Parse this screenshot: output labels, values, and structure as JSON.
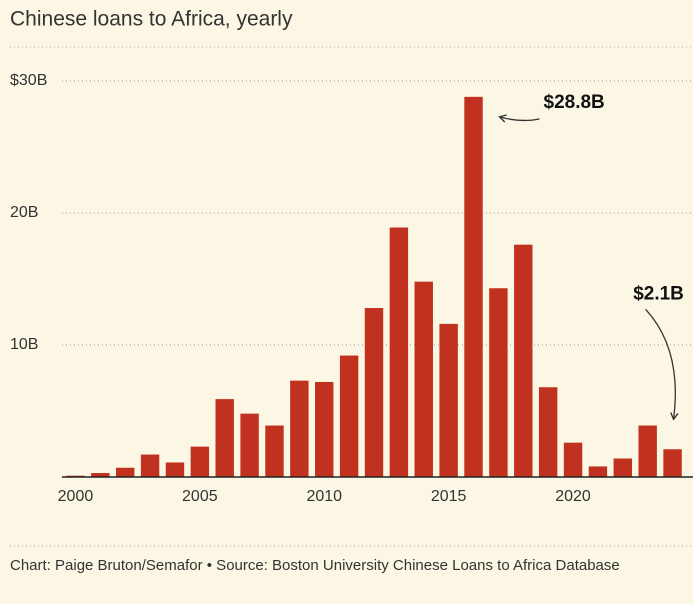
{
  "chart_data": {
    "type": "bar",
    "title": "Chinese loans to Africa, yearly",
    "source": "Chart: Paige Bruton/Semafor • Source: Boston University Chinese Loans to Africa Database",
    "x": [
      2000,
      2001,
      2002,
      2003,
      2004,
      2005,
      2006,
      2007,
      2008,
      2009,
      2010,
      2011,
      2012,
      2013,
      2014,
      2015,
      2016,
      2017,
      2018,
      2019,
      2020,
      2021,
      2022,
      2023,
      2024
    ],
    "values": [
      0.1,
      0.3,
      0.7,
      1.7,
      1.1,
      2.3,
      5.9,
      4.8,
      3.9,
      7.3,
      7.2,
      9.2,
      12.8,
      18.9,
      14.8,
      11.6,
      28.8,
      14.3,
      17.6,
      6.8,
      2.6,
      0.8,
      1.4,
      3.9,
      2.1
    ],
    "color": "#c0321f",
    "xlim": [
      1999.5,
      2024.5
    ],
    "xticks": [
      2000,
      2005,
      2010,
      2015,
      2020
    ],
    "ylim": [
      0,
      30
    ],
    "yticks": [
      {
        "value": 10,
        "label": "10B"
      },
      {
        "value": 20,
        "label": "20B"
      },
      {
        "value": 30,
        "label": "$30B"
      }
    ],
    "grid": true,
    "annotations": [
      {
        "text": "$28.8B",
        "x": 2016
      },
      {
        "text": "$2.1B",
        "x": 2024
      }
    ]
  }
}
